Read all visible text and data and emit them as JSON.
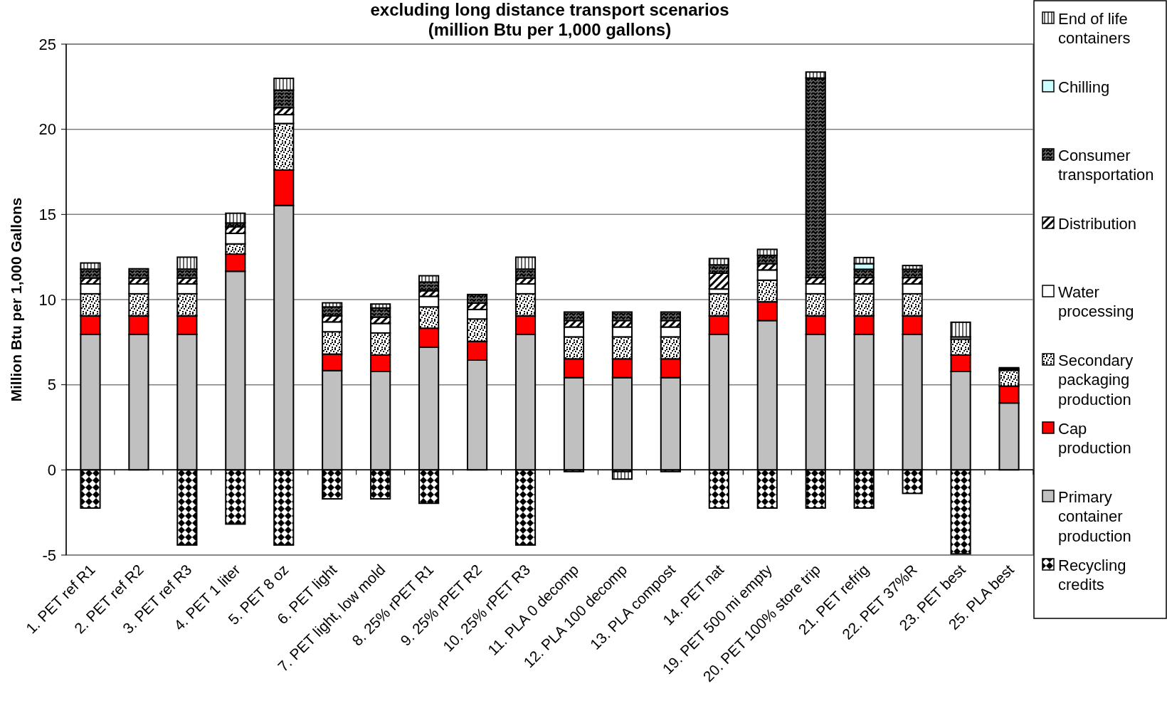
{
  "chart_data": {
    "type": "bar",
    "stacked": true,
    "title": "excluding long distance transport scenarios",
    "subtitle": "(million Btu per 1,000 gallons)",
    "ylabel": "Million Btu per 1,000 Gallons",
    "categories": [
      "1. PET ref R1",
      "2. PET ref R2",
      "3. PET ref R3",
      "4. PET 1 liter",
      "5. PET 8 oz",
      "6. PET light",
      "7. PET light, low mold",
      "8. 25% rPET R1",
      "9. 25% rPET R2",
      "10. 25% rPET R3",
      "11. PLA 0 decomp",
      "12. PLA 100 decomp",
      "13. PLA compost",
      "14. PET nat",
      "19. PET 500 mi empty",
      "20. PET 100% store trip",
      "21. PET refrig",
      "22. PET 37%R",
      "23. PET best",
      "25. PLA best"
    ],
    "series": [
      {
        "name": "Recycling credits",
        "color": "#000000",
        "values": [
          -2.24,
          null,
          -4.41,
          -3.18,
          -4.41,
          -1.7,
          -1.7,
          -1.96,
          null,
          -4.41,
          -0.1,
          -0.1,
          -0.1,
          -2.24,
          -2.24,
          -2.24,
          -2.24,
          -1.38,
          -4.93,
          null
        ]
      },
      {
        "name": "Primary container production",
        "color": "#c0c0c0",
        "values": [
          7.96,
          7.96,
          7.96,
          11.66,
          15.53,
          5.83,
          5.78,
          7.21,
          6.45,
          7.96,
          5.42,
          5.42,
          5.42,
          7.96,
          8.77,
          7.96,
          7.96,
          7.96,
          5.78,
          3.93
        ]
      },
      {
        "name": "Cap production",
        "color": "#ff0000",
        "values": [
          1.09,
          1.09,
          1.09,
          1.01,
          2.08,
          0.97,
          0.97,
          1.11,
          1.1,
          1.09,
          1.1,
          1.1,
          1.1,
          1.09,
          1.1,
          1.09,
          1.09,
          1.09,
          0.97,
          0.99
        ]
      },
      {
        "name": "Secondary packaging production",
        "color": "#000000",
        "values": [
          1.29,
          1.29,
          1.29,
          0.6,
          2.73,
          1.31,
          1.29,
          1.25,
          1.31,
          1.29,
          1.29,
          1.29,
          1.29,
          1.29,
          1.27,
          1.29,
          1.29,
          1.29,
          0.93,
          0.93
        ]
      },
      {
        "name": "Water processing",
        "color": "#ffffff",
        "values": [
          0.58,
          0.58,
          0.58,
          0.62,
          0.52,
          0.58,
          0.56,
          0.62,
          0.56,
          0.58,
          0.58,
          0.58,
          0.58,
          0.28,
          0.6,
          0.58,
          0.58,
          0.58,
          0.13,
          0.08
        ]
      },
      {
        "name": "Distribution",
        "color": "#000000",
        "values": [
          0.35,
          0.35,
          0.35,
          0.39,
          0.41,
          0.36,
          0.37,
          0.33,
          0.37,
          0.35,
          0.38,
          0.38,
          0.38,
          0.93,
          0.37,
          0.37,
          0.37,
          0.37,
          null,
          null
        ]
      },
      {
        "name": "Consumer transportation",
        "color": "#000000",
        "values": [
          0.52,
          0.54,
          0.52,
          0.22,
          1.03,
          0.52,
          0.54,
          0.51,
          0.51,
          0.52,
          0.5,
          0.5,
          0.5,
          0.49,
          0.49,
          11.72,
          0.49,
          0.49,
          null,
          null
        ]
      },
      {
        "name": "Chilling",
        "color": "#ccffff",
        "values": [
          null,
          null,
          null,
          null,
          null,
          null,
          null,
          null,
          null,
          null,
          null,
          null,
          null,
          null,
          null,
          null,
          0.33,
          null,
          null,
          null
        ]
      },
      {
        "name": "End of life containers",
        "color": "#000000",
        "values": [
          0.36,
          null,
          0.7,
          0.57,
          0.69,
          0.24,
          0.23,
          0.37,
          null,
          0.7,
          null,
          -0.44,
          null,
          0.37,
          0.35,
          0.35,
          0.36,
          0.22,
          0.86,
          0.07
        ]
      }
    ],
    "ylim": [
      -5,
      25
    ],
    "yticks": [
      -5,
      0,
      5,
      10,
      15,
      20,
      25
    ],
    "grid": "y",
    "legend": "right"
  }
}
